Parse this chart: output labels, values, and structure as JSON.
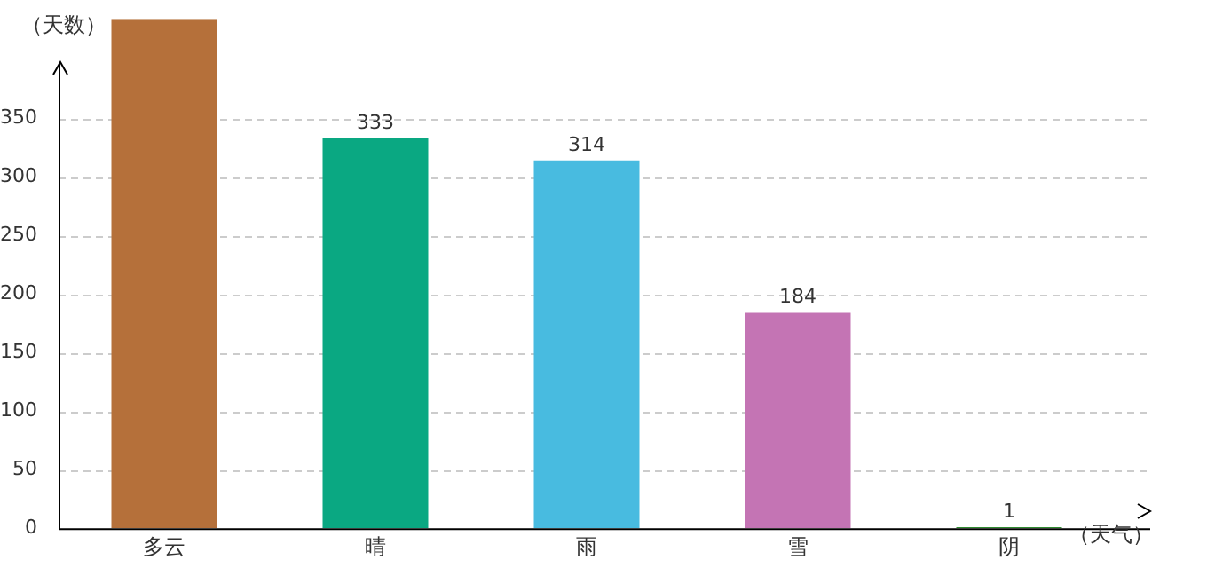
{
  "chart_data": {
    "type": "bar",
    "xlabel": "（天气）",
    "ylabel": "（天数）",
    "categories": [
      "多云",
      "晴",
      "雨",
      "雪",
      "阴"
    ],
    "values": [
      435,
      333,
      314,
      184,
      1
    ],
    "colors": [
      "#b5703a",
      "#0aa882",
      "#48bbe0",
      "#c474b4",
      "#2e8b2e"
    ],
    "value_labels": [
      null,
      "333",
      "314",
      "184",
      "1"
    ],
    "ylim": [
      0,
      435
    ],
    "yticks": [
      0,
      50,
      100,
      150,
      200,
      250,
      300,
      350
    ],
    "grid": "y"
  }
}
